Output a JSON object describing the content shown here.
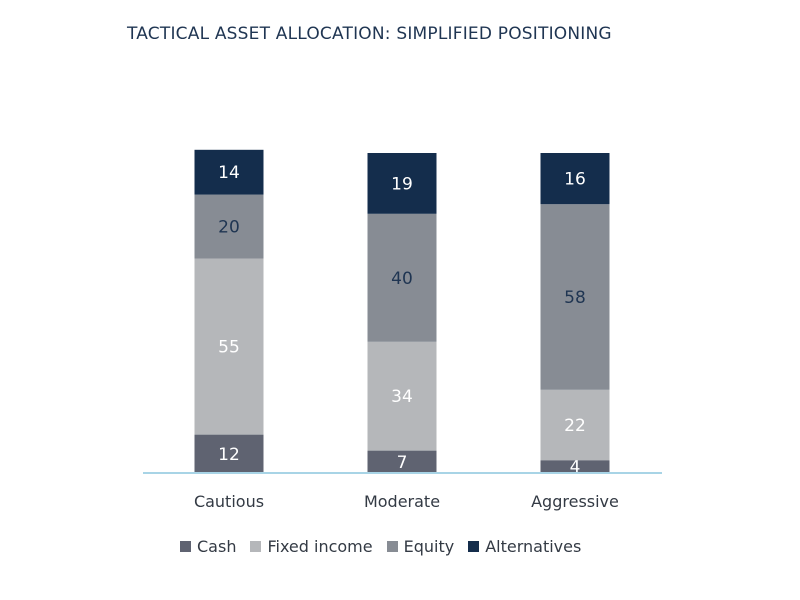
{
  "chart_data": {
    "type": "bar",
    "stacked": true,
    "title": "TACTICAL ASSET ALLOCATION: SIMPLIFIED POSITIONING",
    "xlabel": "",
    "ylabel": "",
    "ylim": [
      0,
      100
    ],
    "grid": false,
    "legend_position": "bottom",
    "categories": [
      "Cautious",
      "Moderate",
      "Aggressive"
    ],
    "series": [
      {
        "name": "Cash",
        "values": [
          12,
          7,
          4
        ],
        "color": "#5f6371",
        "label_color": "#ffffff"
      },
      {
        "name": "Fixed income",
        "values": [
          55,
          34,
          22
        ],
        "color": "#b5b7ba",
        "label_color": "#ffffff"
      },
      {
        "name": "Equity",
        "values": [
          20,
          40,
          58
        ],
        "color": "#878c94",
        "label_color": "#1f3552"
      },
      {
        "name": "Alternatives",
        "values": [
          14,
          19,
          16
        ],
        "color": "#142d4c",
        "label_color": "#ffffff"
      }
    ],
    "baseline_color": "#a8d4e6"
  }
}
